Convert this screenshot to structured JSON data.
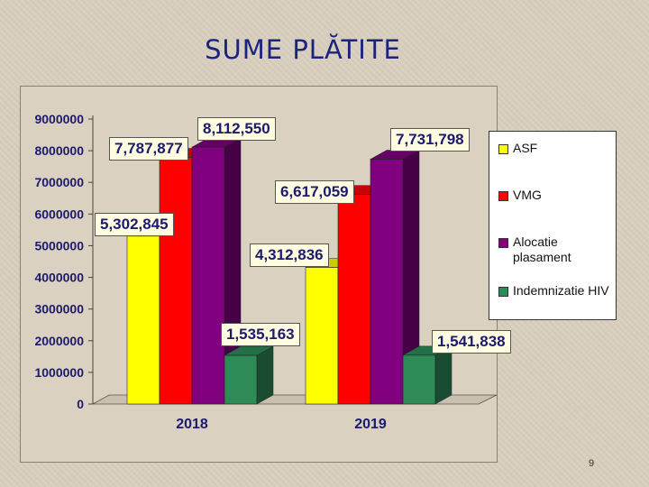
{
  "slide": {
    "title": "SUME PLĂTITE",
    "page_number": "9"
  },
  "chart_data": {
    "type": "bar",
    "categories": [
      "2018",
      "2019"
    ],
    "series": [
      {
        "name": "ASF",
        "values": [
          5302845,
          4312836
        ],
        "color": "#ffff00"
      },
      {
        "name": "VMG",
        "values": [
          7787877,
          6617059
        ],
        "color": "#ff0000"
      },
      {
        "name": "Alocatie plasament",
        "values": [
          8112550,
          7731798
        ],
        "color": "#800080"
      },
      {
        "name": "Indemnizatie HIV",
        "values": [
          1535163,
          1541838
        ],
        "color": "#2e8b57"
      }
    ],
    "data_labels": [
      [
        "5,302,845",
        "7,787,877",
        "8,112,550",
        "1,535,163"
      ],
      [
        "4,312,836",
        "6,617,059",
        "7,731,798",
        "1,541,838"
      ]
    ],
    "y_ticks": [
      "0",
      "1000000",
      "2000000",
      "3000000",
      "4000000",
      "5000000",
      "6000000",
      "7000000",
      "8000000",
      "9000000"
    ],
    "ylim": [
      0,
      9000000
    ],
    "title": "",
    "xlabel": "",
    "ylabel": "",
    "legend_position": "right",
    "grid": false,
    "style": "3d-clustered-column"
  }
}
